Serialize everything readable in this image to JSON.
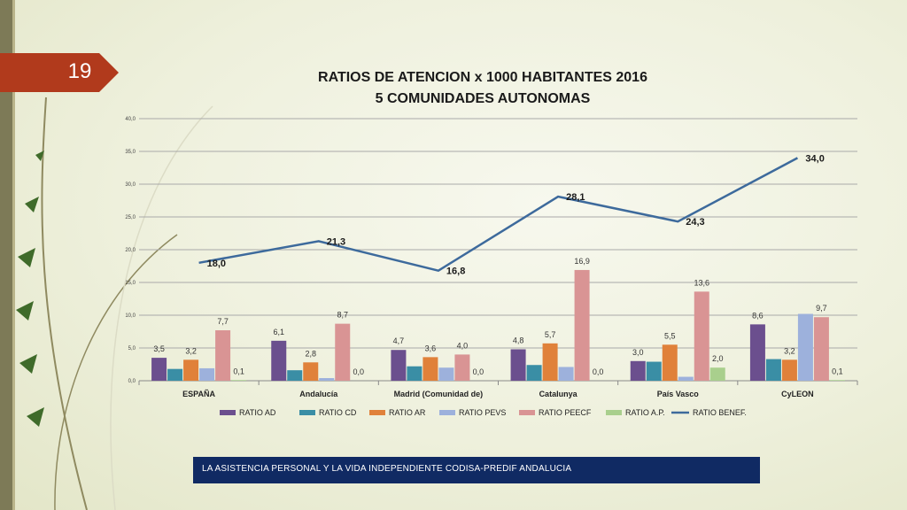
{
  "slide": {
    "number": "19",
    "footer": "LA ASISTENCIA PERSONAL Y LA VIDA INDEPENDIENTE CODISA-PREDIF ANDALUCIA"
  },
  "chart_data": {
    "type": "bar",
    "title": "RATIOS DE ATENCION x 1000 HABITANTES 2016",
    "subtitle": "5 COMUNIDADES AUTONOMAS",
    "categories": [
      "ESPAÑA",
      "Andalucía",
      "Madrid (Comunidad de)",
      "Catalunya",
      "País Vasco",
      "CyLEON"
    ],
    "ylim": [
      0,
      40
    ],
    "yticks": [
      "0,0",
      "5,0",
      "10,0",
      "15,0",
      "20,0",
      "25,0",
      "30,0",
      "35,0",
      "40,0"
    ],
    "grid": true,
    "legend_position": "bottom",
    "series": [
      {
        "name": "RATIO AD",
        "kind": "bar",
        "color": "#6b4f8e",
        "values": [
          3.5,
          6.1,
          4.7,
          4.8,
          3.0,
          8.6
        ],
        "labels": [
          "3,5",
          "6,1",
          "4,7",
          "4,8",
          "3,0",
          "8,6"
        ]
      },
      {
        "name": "RATIO CD",
        "kind": "bar",
        "color": "#3a8ea5",
        "values": [
          1.8,
          1.6,
          2.2,
          2.4,
          2.9,
          3.3
        ],
        "labels": [
          "",
          "",
          "",
          "",
          "",
          ""
        ]
      },
      {
        "name": "RATIO AR",
        "kind": "bar",
        "color": "#e0813a",
        "values": [
          3.2,
          2.8,
          3.6,
          5.7,
          5.5,
          3.2
        ],
        "labels": [
          "3,2",
          "2,8",
          "3,6",
          "5,7",
          "5,5",
          "3,2"
        ]
      },
      {
        "name": "RATIO PEVS",
        "kind": "bar",
        "color": "#9db1dc",
        "values": [
          1.9,
          0.4,
          2.0,
          2.1,
          0.6,
          10.2
        ],
        "labels": [
          "",
          "",
          "",
          "",
          "",
          ""
        ]
      },
      {
        "name": "RATIO PEECF",
        "kind": "bar",
        "color": "#d99494",
        "values": [
          7.7,
          8.7,
          4.0,
          16.9,
          13.6,
          9.7
        ],
        "labels": [
          "7,7",
          "8,7",
          "4,0",
          "16,9",
          "13,6",
          "9,7"
        ]
      },
      {
        "name": "RATIO A.P.",
        "kind": "bar",
        "color": "#a9cf8d",
        "values": [
          0.1,
          0.0,
          0.0,
          0.0,
          2.0,
          0.1
        ],
        "labels": [
          "0,1",
          "0,0",
          "0,0",
          "0,0",
          "2,0",
          "0,1"
        ]
      },
      {
        "name": "RATIO BENEF.",
        "kind": "line",
        "color": "#3d6a9c",
        "values": [
          18.0,
          21.3,
          16.8,
          28.1,
          24.3,
          34.0
        ],
        "labels": [
          "18,0",
          "21,3",
          "16,8",
          "28,1",
          "24,3",
          "34,0"
        ]
      }
    ]
  }
}
